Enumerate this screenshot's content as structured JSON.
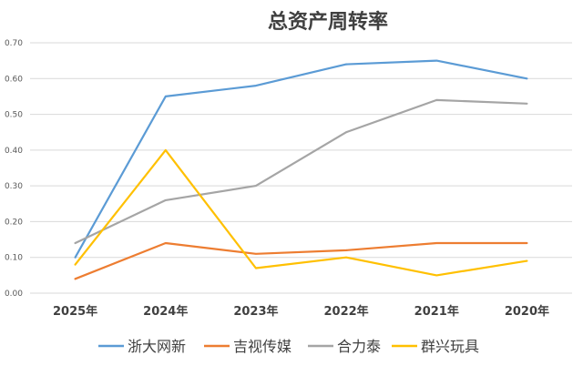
{
  "chart_data": {
    "type": "line",
    "title": "总资产周转率",
    "xlabel": "",
    "ylabel": "",
    "categories": [
      "2025年",
      "2024年",
      "2023年",
      "2022年",
      "2021年",
      "2020年"
    ],
    "ylim": [
      0,
      0.7
    ],
    "yticks": [
      "0.00",
      "0.10",
      "0.20",
      "0.30",
      "0.40",
      "0.50",
      "0.60",
      "0.70"
    ],
    "grid": true,
    "legend_position": "bottom",
    "series": [
      {
        "name": "浙大网新",
        "color": "#5b9bd5",
        "values": [
          0.1,
          0.55,
          0.58,
          0.64,
          0.65,
          0.6
        ]
      },
      {
        "name": "吉视传媒",
        "color": "#ed7d31",
        "values": [
          0.04,
          0.14,
          0.11,
          0.12,
          0.14,
          0.14
        ]
      },
      {
        "name": "合力泰",
        "color": "#a5a5a5",
        "values": [
          0.14,
          0.26,
          0.3,
          0.45,
          0.54,
          0.53
        ]
      },
      {
        "name": "群兴玩具",
        "color": "#ffc000",
        "values": [
          0.08,
          0.4,
          0.07,
          0.1,
          0.05,
          0.09
        ]
      }
    ]
  }
}
